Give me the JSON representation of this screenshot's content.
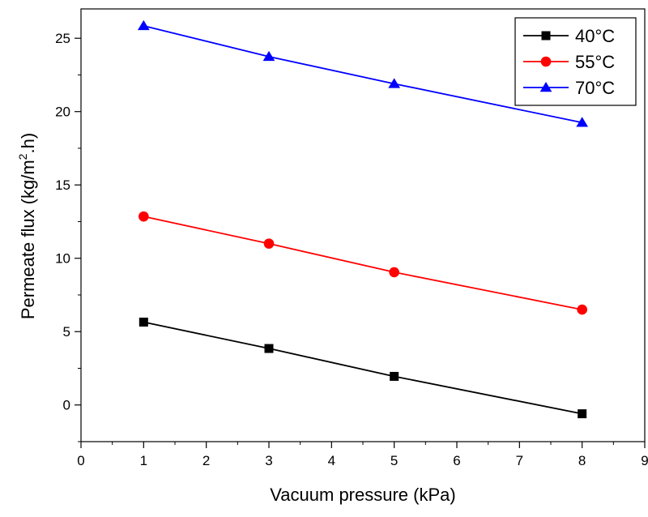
{
  "chart_data": {
    "type": "line",
    "title": "",
    "xlabel": "Vacuum pressure (kPa)",
    "ylabel_main": "Permeate flux (kg/m",
    "ylabel_sup": "2",
    "ylabel_tail": ".h)",
    "xlim": [
      0,
      9
    ],
    "ylim": [
      -2.5,
      27
    ],
    "x_ticks": [
      0,
      1,
      2,
      3,
      4,
      5,
      6,
      7,
      8,
      9
    ],
    "x_tick_labels": [
      "0",
      "1",
      "2",
      "3",
      "4",
      "5",
      "6",
      "7",
      "8",
      "9"
    ],
    "y_ticks": [
      0,
      5,
      10,
      15,
      20,
      25
    ],
    "y_tick_labels": [
      "0",
      "5",
      "10",
      "15",
      "20",
      "25"
    ],
    "grid": false,
    "legend_position": "top-right",
    "series": [
      {
        "name": "40°C",
        "color": "#000000",
        "marker": "square",
        "x": [
          1,
          3,
          5,
          8
        ],
        "y": [
          5.65,
          3.85,
          1.95,
          -0.6
        ]
      },
      {
        "name": "55°C",
        "color": "#ff0000",
        "marker": "circle",
        "x": [
          1,
          3,
          5,
          8
        ],
        "y": [
          12.85,
          11.0,
          9.05,
          6.5
        ]
      },
      {
        "name": "70°C",
        "color": "#0000ff",
        "marker": "triangle",
        "x": [
          1,
          3,
          5,
          8
        ],
        "y": [
          25.85,
          23.75,
          21.9,
          19.25
        ]
      }
    ]
  }
}
